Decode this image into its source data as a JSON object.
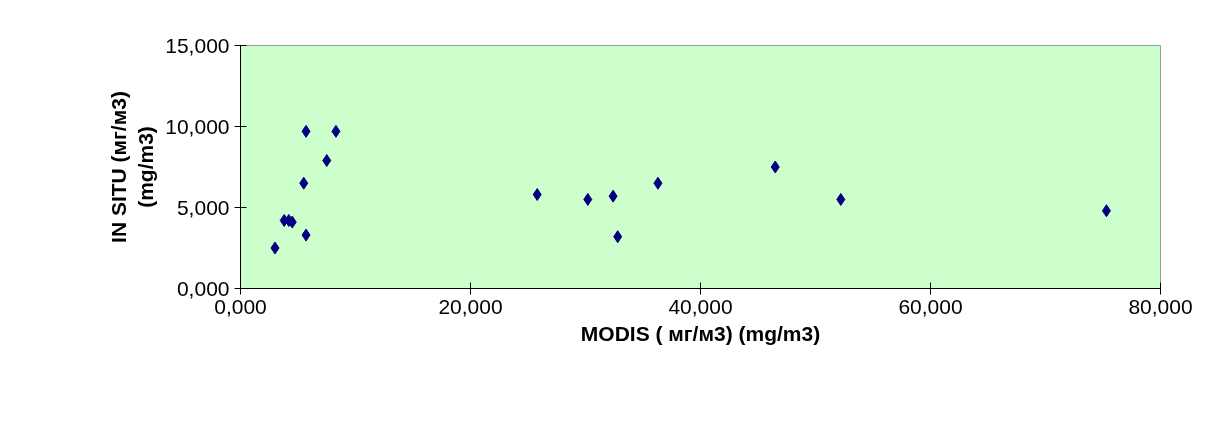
{
  "chart_data": {
    "type": "scatter",
    "xlabel": "MODIS ( мг/м3) (mg/m3)",
    "ylabel": "IN SITU (мг/м3)\n(mg/m3)",
    "x": [
      3.0,
      3.8,
      4.2,
      4.5,
      5.5,
      5.7,
      5.7,
      7.5,
      8.3,
      25.8,
      30.2,
      32.4,
      32.8,
      36.3,
      46.5,
      52.2,
      75.3
    ],
    "series": [
      {
        "color": "#000080",
        "values": [
          2.5,
          4.2,
          4.2,
          4.1,
          6.5,
          9.7,
          3.3,
          7.9,
          9.7,
          5.8,
          5.5,
          5.7,
          3.2,
          6.5,
          7.5,
          5.5,
          4.8
        ]
      }
    ],
    "xlim": [
      0,
      80
    ],
    "ylim": [
      0,
      15
    ],
    "xticks": [
      {
        "value": 0,
        "label": "0,000"
      },
      {
        "value": 20,
        "label": "20,000"
      },
      {
        "value": 40,
        "label": "40,000"
      },
      {
        "value": 60,
        "label": "60,000"
      },
      {
        "value": 80,
        "label": "80,000"
      }
    ],
    "yticks": [
      {
        "value": 0,
        "label": "0,000"
      },
      {
        "value": 5,
        "label": "5,000"
      },
      {
        "value": 10,
        "label": "10,000"
      },
      {
        "value": 15,
        "label": "15,000"
      }
    ],
    "marker": "diamond",
    "grid": false
  }
}
